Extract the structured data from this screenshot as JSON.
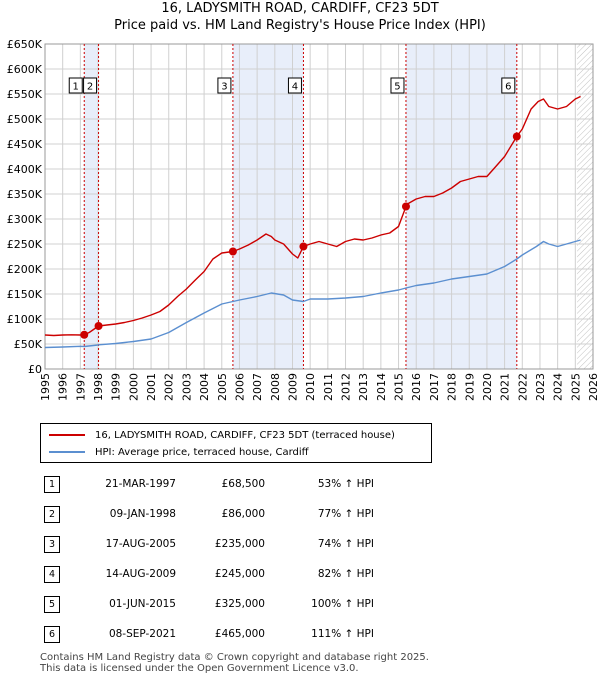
{
  "title": {
    "line1": "16, LADYSMITH ROAD, CARDIFF, CF23 5DT",
    "line2": "Price paid vs. HM Land Registry's House Price Index (HPI)"
  },
  "colors": {
    "property": "#cc0000",
    "hpi": "#5b8fd0",
    "band": "#e8eefa",
    "grid": "#d0d0d0",
    "vline": "#cc0000",
    "future_hatch": "#999999"
  },
  "legend": {
    "property_label": "16, LADYSMITH ROAD, CARDIFF, CF23 5DT (terraced house)",
    "hpi_label": "HPI: Average price, terraced house, Cardiff"
  },
  "sales": [
    {
      "num": "1",
      "date": "21-MAR-1997",
      "price": "£68,500",
      "hpi": "53% ↑ HPI"
    },
    {
      "num": "2",
      "date": "09-JAN-1998",
      "price": "£86,000",
      "hpi": "77% ↑ HPI"
    },
    {
      "num": "3",
      "date": "17-AUG-2005",
      "price": "£235,000",
      "hpi": "74% ↑ HPI"
    },
    {
      "num": "4",
      "date": "14-AUG-2009",
      "price": "£245,000",
      "hpi": "82% ↑ HPI"
    },
    {
      "num": "5",
      "date": "01-JUN-2015",
      "price": "£325,000",
      "hpi": "100% ↑ HPI"
    },
    {
      "num": "6",
      "date": "08-SEP-2021",
      "price": "£465,000",
      "hpi": "111% ↑ HPI"
    }
  ],
  "footer": {
    "line1": "Contains HM Land Registry data © Crown copyright and database right 2025.",
    "line2": "This data is licensed under the Open Government Licence v3.0."
  },
  "chart_data": {
    "type": "line",
    "title": "Price paid vs. HM Land Registry's House Price Index (HPI)",
    "xlim": [
      1995,
      2026
    ],
    "ylim": [
      0,
      650000
    ],
    "x_ticks": [
      1995,
      1996,
      1997,
      1998,
      1999,
      2000,
      2001,
      2002,
      2003,
      2004,
      2005,
      2006,
      2007,
      2008,
      2009,
      2010,
      2011,
      2012,
      2013,
      2014,
      2015,
      2016,
      2017,
      2018,
      2019,
      2020,
      2021,
      2022,
      2023,
      2024,
      2025,
      2026
    ],
    "y_ticks": [
      0,
      50000,
      100000,
      150000,
      200000,
      250000,
      300000,
      350000,
      400000,
      450000,
      500000,
      550000,
      600000,
      650000
    ],
    "y_tick_labels": [
      "£0",
      "£50K",
      "£100K",
      "£150K",
      "£200K",
      "£250K",
      "£300K",
      "£350K",
      "£400K",
      "£450K",
      "£500K",
      "£550K",
      "£600K",
      "£650K"
    ],
    "shaded_periods": [
      [
        1997.22,
        1998.03
      ],
      [
        2005.63,
        2009.62
      ],
      [
        2015.42,
        2021.69
      ]
    ],
    "future_start": 2025.1,
    "series": [
      {
        "name": "16, LADYSMITH ROAD, CARDIFF, CF23 5DT (terraced house)",
        "x": [
          1995.0,
          1995.5,
          1996.0,
          1996.5,
          1997.0,
          1997.22,
          1997.5,
          1998.03,
          1998.5,
          1999.0,
          1999.5,
          2000.0,
          2000.5,
          2001.0,
          2001.5,
          2002.0,
          2002.5,
          2003.0,
          2003.5,
          2004.0,
          2004.5,
          2005.0,
          2005.63,
          2006.0,
          2006.5,
          2007.0,
          2007.5,
          2007.8,
          2008.0,
          2008.5,
          2009.0,
          2009.3,
          2009.62,
          2010.0,
          2010.5,
          2011.0,
          2011.5,
          2012.0,
          2012.5,
          2013.0,
          2013.5,
          2014.0,
          2014.5,
          2015.0,
          2015.42,
          2015.5,
          2016.0,
          2016.5,
          2017.0,
          2017.5,
          2018.0,
          2018.5,
          2019.0,
          2019.5,
          2020.0,
          2020.5,
          2021.0,
          2021.69,
          2022.0,
          2022.5,
          2022.9,
          2023.2,
          2023.5,
          2024.0,
          2024.5,
          2025.0,
          2025.3
        ],
        "y": [
          68000,
          67000,
          68000,
          68500,
          68000,
          68500,
          73000,
          86000,
          88000,
          90000,
          93000,
          97000,
          102000,
          108000,
          115000,
          128000,
          145000,
          160000,
          178000,
          195000,
          220000,
          232000,
          235000,
          240000,
          248000,
          258000,
          270000,
          265000,
          258000,
          250000,
          230000,
          222000,
          245000,
          250000,
          255000,
          250000,
          245000,
          255000,
          260000,
          258000,
          262000,
          268000,
          272000,
          285000,
          325000,
          330000,
          340000,
          345000,
          345000,
          352000,
          362000,
          375000,
          380000,
          385000,
          385000,
          405000,
          425000,
          465000,
          480000,
          520000,
          535000,
          540000,
          525000,
          520000,
          525000,
          540000,
          545000
        ]
      },
      {
        "name": "HPI: Average price, terraced house, Cardiff",
        "x": [
          1995.0,
          1996.0,
          1997.0,
          1997.22,
          1998.0,
          1998.03,
          1999.0,
          2000.0,
          2001.0,
          2002.0,
          2003.0,
          2004.0,
          2005.0,
          2005.63,
          2006.0,
          2007.0,
          2007.8,
          2008.5,
          2009.0,
          2009.62,
          2010.0,
          2011.0,
          2012.0,
          2013.0,
          2014.0,
          2015.0,
          2015.42,
          2016.0,
          2017.0,
          2018.0,
          2019.0,
          2020.0,
          2021.0,
          2021.69,
          2022.0,
          2022.8,
          2023.2,
          2023.5,
          2024.0,
          2024.5,
          2025.0,
          2025.3
        ],
        "y": [
          43000,
          44000,
          45500,
          45000,
          48000,
          48500,
          51000,
          55000,
          60000,
          73000,
          93000,
          112000,
          130000,
          135000,
          138000,
          145000,
          152000,
          148000,
          138000,
          135000,
          140000,
          140000,
          142000,
          145000,
          152000,
          158000,
          162000,
          167000,
          172000,
          180000,
          185000,
          190000,
          205000,
          220000,
          228000,
          245000,
          255000,
          250000,
          245000,
          250000,
          255000,
          258000
        ]
      }
    ],
    "sale_points": [
      {
        "label": "1",
        "x": 1997.22,
        "y": 68500
      },
      {
        "label": "2",
        "x": 1998.03,
        "y": 86000
      },
      {
        "label": "3",
        "x": 2005.63,
        "y": 235000
      },
      {
        "label": "4",
        "x": 2009.62,
        "y": 245000
      },
      {
        "label": "5",
        "x": 2015.42,
        "y": 325000
      },
      {
        "label": "6",
        "x": 2021.69,
        "y": 465000
      }
    ]
  }
}
